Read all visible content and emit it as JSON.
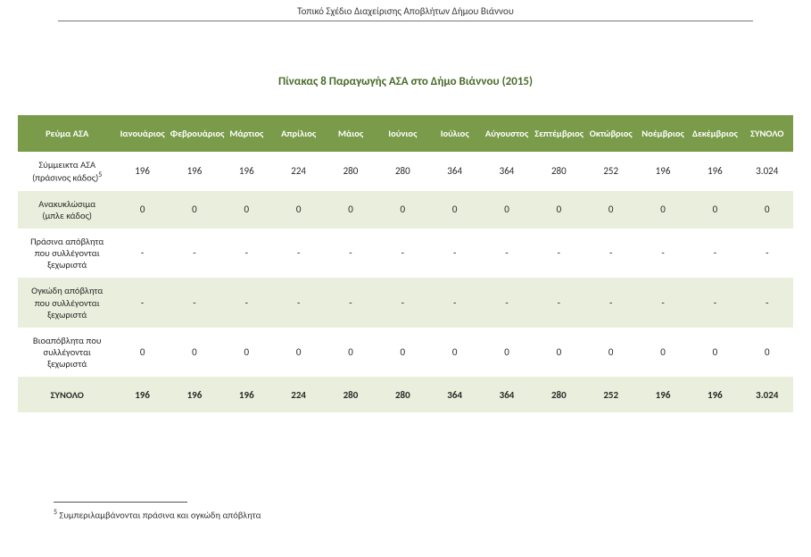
{
  "header_title": "Τοπικό Σχέδιο Διαχείρισης Αποβλήτων Δήμου Βιάννου",
  "table_title": "Πίνακας 8 Παραγωγής ΑΣΑ στο Δήμο Βιάννου (2015)",
  "columns": [
    "Ρεύμα ΑΣΑ",
    "Ιανουάριος",
    "Φεβρουάριος",
    "Μάρτιος",
    "Απρίλιος",
    "Μάιος",
    "Ιούνιος",
    "Ιούλιος",
    "Αύγουστος",
    "Σεπτέμβριος",
    "Οκτώβριος",
    "Νοέμβριος",
    "Δεκέμβριος",
    "ΣΥΝΟΛΟ"
  ],
  "rows": [
    {
      "label_parts": [
        "Σύμμεικτα ΑΣΑ",
        "(πράσινος κάδος)"
      ],
      "sup": "5",
      "stripe": "odd",
      "values": [
        "196",
        "196",
        "196",
        "224",
        "280",
        "280",
        "364",
        "364",
        "280",
        "252",
        "196",
        "196",
        "3.024"
      ]
    },
    {
      "label_parts": [
        "Ανακυκλώσιμα",
        "(μπλε κάδος)"
      ],
      "sup": "",
      "stripe": "even",
      "values": [
        "0",
        "0",
        "0",
        "0",
        "0",
        "0",
        "0",
        "0",
        "0",
        "0",
        "0",
        "0",
        "0"
      ]
    },
    {
      "label_parts": [
        "Πράσινα απόβλητα",
        "που συλλέγονται",
        "ξεχωριστά"
      ],
      "sup": "",
      "stripe": "odd",
      "values": [
        "-",
        "-",
        "-",
        "-",
        "-",
        "-",
        "-",
        "-",
        "-",
        "-",
        "-",
        "-",
        "-"
      ]
    },
    {
      "label_parts": [
        "Ογκώδη απόβλητα",
        "που συλλέγονται",
        "ξεχωριστά"
      ],
      "sup": "",
      "stripe": "even",
      "values": [
        "-",
        "-",
        "-",
        "-",
        "-",
        "-",
        "-",
        "-",
        "-",
        "-",
        "-",
        "-",
        "-"
      ]
    },
    {
      "label_parts": [
        "Βιοαπόβλητα που",
        "συλλέγονται",
        "ξεχωριστά"
      ],
      "sup": "",
      "stripe": "odd",
      "values": [
        "0",
        "0",
        "0",
        "0",
        "0",
        "0",
        "0",
        "0",
        "0",
        "0",
        "0",
        "0",
        "0"
      ]
    },
    {
      "label_parts": [
        "ΣΥΝΟΛΟ"
      ],
      "sup": "",
      "stripe": "total",
      "values": [
        "196",
        "196",
        "196",
        "224",
        "280",
        "280",
        "364",
        "364",
        "280",
        "252",
        "196",
        "196",
        "3.024"
      ]
    }
  ],
  "footnote_sup": "5",
  "footnote_text": " Συμπεριλαμβάνονται πράσινα και ογκώδη απόβλητα",
  "style": {
    "header_bg": "#7a9b4a",
    "header_fg": "#ffffff",
    "row_even_bg": "#e9efdc",
    "row_odd_bg": "#ffffff",
    "title_color": "#4a6b2a",
    "body_font": "Calibri, Arial, sans-serif"
  }
}
